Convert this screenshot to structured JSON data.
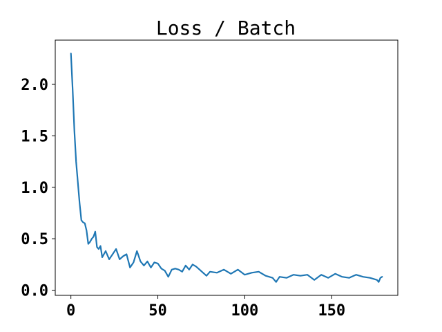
{
  "chart_data": {
    "type": "line",
    "title": "Loss / Batch",
    "xlabel": "",
    "ylabel": "",
    "xlim": [
      -9,
      188
    ],
    "ylim": [
      -0.05,
      2.43
    ],
    "xticks": [
      0,
      50,
      100,
      150
    ],
    "xtick_labels": [
      "0",
      "50",
      "100",
      "150"
    ],
    "yticks": [
      0.0,
      0.5,
      1.0,
      1.5,
      2.0
    ],
    "ytick_labels": [
      "0.0",
      "0.5",
      "1.0",
      "1.5",
      "2.0"
    ],
    "grid": false,
    "legend": "none",
    "series": [
      {
        "color": "#1f77b4",
        "x": [
          0,
          1,
          2,
          3,
          4,
          5,
          6,
          7,
          8,
          9,
          10,
          11,
          12,
          13,
          14,
          15,
          16,
          17,
          18,
          19,
          20,
          22,
          24,
          26,
          28,
          30,
          32,
          34,
          36,
          38,
          40,
          42,
          44,
          46,
          48,
          50,
          52,
          54,
          56,
          58,
          60,
          62,
          64,
          66,
          68,
          70,
          72,
          74,
          76,
          78,
          80,
          84,
          88,
          92,
          96,
          100,
          104,
          108,
          112,
          116,
          118,
          120,
          124,
          128,
          132,
          136,
          140,
          144,
          148,
          152,
          156,
          160,
          164,
          168,
          172,
          176,
          177,
          178,
          179
        ],
        "y": [
          2.3,
          1.95,
          1.55,
          1.25,
          1.05,
          0.85,
          0.68,
          0.66,
          0.65,
          0.58,
          0.45,
          0.47,
          0.5,
          0.52,
          0.57,
          0.42,
          0.4,
          0.43,
          0.32,
          0.35,
          0.38,
          0.3,
          0.35,
          0.4,
          0.3,
          0.33,
          0.35,
          0.22,
          0.27,
          0.38,
          0.28,
          0.24,
          0.28,
          0.22,
          0.27,
          0.26,
          0.21,
          0.19,
          0.13,
          0.2,
          0.21,
          0.2,
          0.18,
          0.24,
          0.2,
          0.25,
          0.23,
          0.2,
          0.17,
          0.14,
          0.18,
          0.17,
          0.2,
          0.16,
          0.2,
          0.15,
          0.17,
          0.18,
          0.14,
          0.12,
          0.08,
          0.13,
          0.12,
          0.15,
          0.14,
          0.15,
          0.1,
          0.15,
          0.12,
          0.16,
          0.13,
          0.12,
          0.15,
          0.13,
          0.12,
          0.1,
          0.08,
          0.12,
          0.13
        ]
      }
    ]
  }
}
